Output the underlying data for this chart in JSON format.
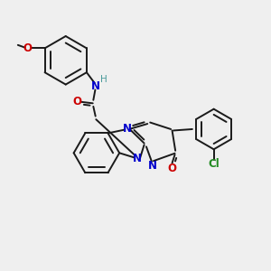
{
  "bg_color": "#efefef",
  "bond_color": "#1a1a1a",
  "n_color": "#0000cc",
  "o_color": "#cc0000",
  "cl_color": "#228B22",
  "h_color": "#4a9a9a",
  "figsize": [
    3.0,
    3.0
  ],
  "dpi": 100,
  "xlim": [
    0,
    10
  ],
  "ylim": [
    0,
    10
  ]
}
